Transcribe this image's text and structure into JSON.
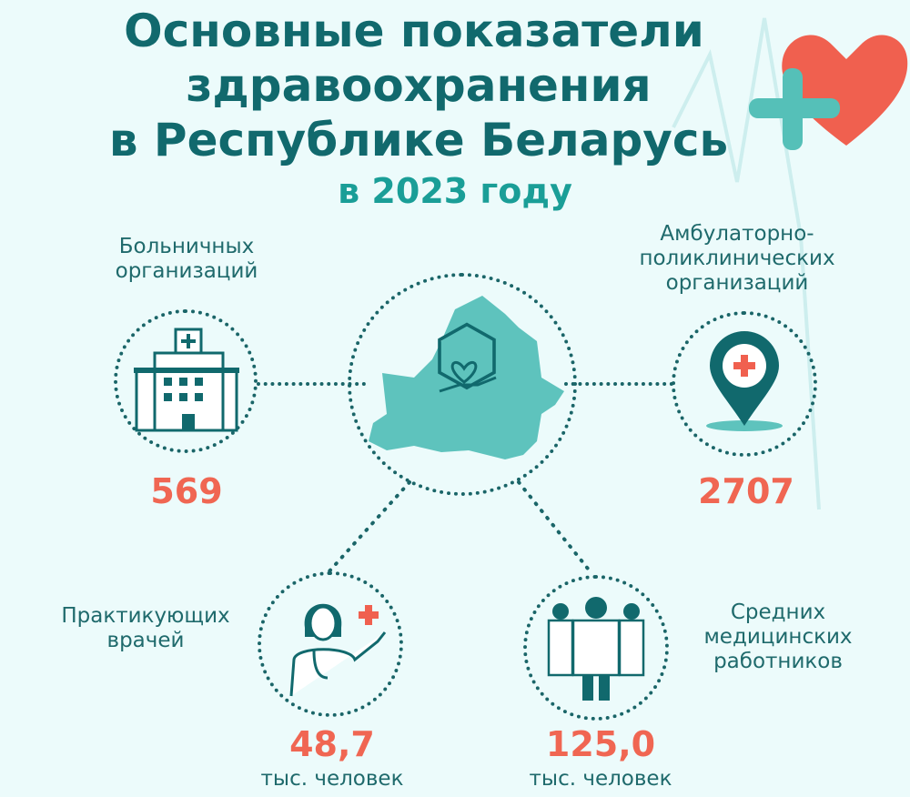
{
  "title": {
    "line1": "Основные показатели",
    "line2": "здравоохранения",
    "line3": "в Республике Беларусь"
  },
  "subtitle": "в 2023 году",
  "colors": {
    "title": "#11696d",
    "subtitle": "#1a9e97",
    "number": "#f06652",
    "map": "#5ec3bd",
    "icon": "#11696d",
    "heart": "#f0604f",
    "background": "#ecfbfb"
  },
  "indicators": [
    {
      "label1": "Больничных",
      "label2": "организаций",
      "value": "569",
      "icon": "hospital-icon"
    },
    {
      "label1": "Амбулаторно-",
      "label2": "поликлинических",
      "label3": "организаций",
      "value": "2707",
      "icon": "map-pin-cross-icon"
    },
    {
      "label1": "Практикующих",
      "label2": "врачей",
      "value": "48,7",
      "unit": "тыс. человек",
      "icon": "doctor-icon"
    },
    {
      "label1": "Средних",
      "label2": "медицинских",
      "label3": "работников",
      "value": "125,0",
      "unit": "тыс. человек",
      "icon": "medical-staff-icon"
    }
  ]
}
